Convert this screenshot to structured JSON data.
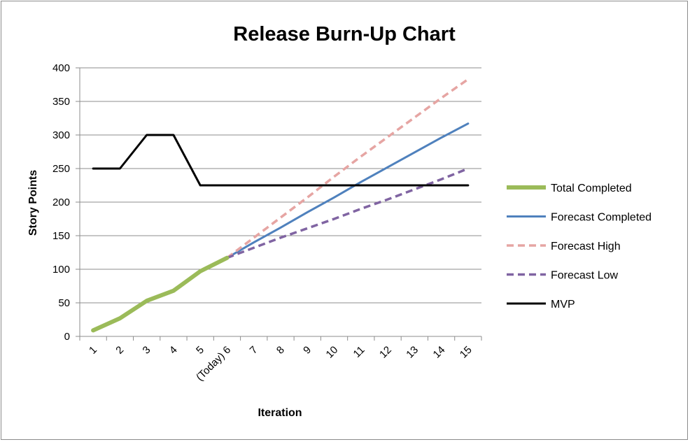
{
  "chart_data": {
    "type": "line",
    "title": "Release Burn-Up Chart",
    "xlabel": "Iteration",
    "ylabel": "Story Points",
    "categories": [
      "1",
      "2",
      "3",
      "4",
      "5",
      "(Today) 6",
      "7",
      "8",
      "9",
      "10",
      "11",
      "12",
      "13",
      "14",
      "15"
    ],
    "ylim": [
      0,
      400
    ],
    "yticks": [
      0,
      50,
      100,
      150,
      200,
      250,
      300,
      350,
      400
    ],
    "grid": "horizontal",
    "legend_position": "right",
    "series": [
      {
        "name": "Total Completed",
        "color": "#9bbb59",
        "style": "solid-thick",
        "values": [
          9,
          27,
          53,
          68,
          97,
          117,
          null,
          null,
          null,
          null,
          null,
          null,
          null,
          null,
          null
        ]
      },
      {
        "name": "Forecast Completed",
        "color": "#4f81bd",
        "style": "solid",
        "values": [
          null,
          null,
          null,
          null,
          null,
          117,
          140,
          162,
          185,
          207,
          230,
          252,
          274,
          296,
          317
        ]
      },
      {
        "name": "Forecast High",
        "color": "#e6a5a3",
        "style": "dashed",
        "values": [
          null,
          null,
          null,
          null,
          null,
          117,
          147,
          177,
          207,
          238,
          268,
          297,
          326,
          355,
          383
        ]
      },
      {
        "name": "Forecast Low",
        "color": "#8064a2",
        "style": "dashed",
        "values": [
          null,
          null,
          null,
          null,
          null,
          117,
          132,
          147,
          161,
          175,
          190,
          204,
          219,
          234,
          250
        ]
      },
      {
        "name": "MVP",
        "color": "#000000",
        "style": "solid",
        "values": [
          250,
          250,
          300,
          300,
          225,
          225,
          225,
          225,
          225,
          225,
          225,
          225,
          225,
          225,
          225
        ]
      }
    ]
  }
}
